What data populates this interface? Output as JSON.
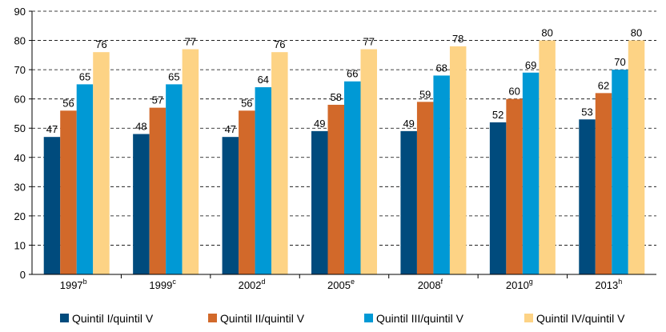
{
  "chart_data": {
    "type": "bar",
    "categories": [
      "1997",
      "1999",
      "2002",
      "2005",
      "2008",
      "2010",
      "2013"
    ],
    "category_notes": [
      "b",
      "c",
      "d",
      "e",
      "f",
      "g",
      "h"
    ],
    "series": [
      {
        "name": "Quintil I/quintil V",
        "color": "#004b7d",
        "values": [
          47,
          48,
          47,
          49,
          49,
          52,
          53
        ]
      },
      {
        "name": "Quintil II/quintil V",
        "color": "#d2692a",
        "values": [
          56,
          57,
          56,
          58,
          59,
          60,
          62
        ]
      },
      {
        "name": "Quintil III/quintil V",
        "color": "#0099d5",
        "values": [
          65,
          65,
          64,
          66,
          68,
          69,
          70
        ]
      },
      {
        "name": "Quintil IV/quintil V",
        "color": "#fdd385",
        "values": [
          76,
          77,
          76,
          77,
          78,
          80,
          80
        ]
      }
    ],
    "ylim": [
      0,
      90
    ],
    "yticks": [
      0,
      10,
      20,
      30,
      40,
      50,
      60,
      70,
      80,
      90
    ],
    "grid": true,
    "legend": "bottom"
  }
}
